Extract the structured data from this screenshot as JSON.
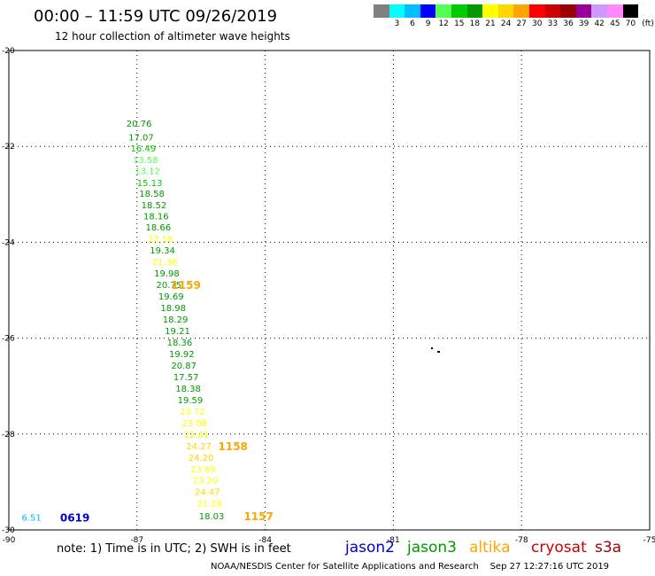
{
  "header": {
    "title": "00:00 – 11:59 UTC 09/26/2019",
    "subtitle": "12 hour collection of altimeter wave heights"
  },
  "legend": {
    "unit": "(ft)",
    "items": [
      {
        "label": "",
        "color": "#808080"
      },
      {
        "label": "3",
        "color": "#00ffff"
      },
      {
        "label": "6",
        "color": "#00bfff"
      },
      {
        "label": "9",
        "color": "#0000ff"
      },
      {
        "label": "12",
        "color": "#55ff55"
      },
      {
        "label": "15",
        "color": "#00cc00"
      },
      {
        "label": "18",
        "color": "#009900"
      },
      {
        "label": "21",
        "color": "#ffff00"
      },
      {
        "label": "24",
        "color": "#ffd700"
      },
      {
        "label": "27",
        "color": "#ffa500"
      },
      {
        "label": "30",
        "color": "#ff0000"
      },
      {
        "label": "33",
        "color": "#cc0000"
      },
      {
        "label": "36",
        "color": "#990000"
      },
      {
        "label": "39",
        "color": "#990099"
      },
      {
        "label": "42",
        "color": "#cc99ff"
      },
      {
        "label": "45",
        "color": "#ff88ff"
      },
      {
        "label": "70",
        "color": "#000000"
      }
    ]
  },
  "map": {
    "lon_range": [
      -90,
      -75
    ],
    "lat_range": [
      -30,
      -20
    ],
    "lon_ticks": [
      -90,
      -87,
      -84,
      -81,
      -78,
      -75
    ],
    "lat_ticks": [
      -20,
      -22,
      -24,
      -26,
      -28,
      -30
    ],
    "lon_tick_labels": [
      "-90",
      "-87",
      "-84",
      "-81",
      "-78",
      "-75"
    ],
    "lat_tick_labels": [
      "-20",
      "-22",
      "-24",
      "-26",
      "-28",
      "-30"
    ]
  },
  "track_readings": [
    {
      "lon": -87.25,
      "lat": -21.52,
      "text": "20.76",
      "color": "#009900"
    },
    {
      "lon": -87.2,
      "lat": -21.8,
      "text": "17.07",
      "color": "#009900"
    },
    {
      "lon": -87.15,
      "lat": -22.03,
      "text": "16.49",
      "color": "#00cc00"
    },
    {
      "lon": -87.1,
      "lat": -22.27,
      "text": "13.58",
      "color": "#55ff55"
    },
    {
      "lon": -87.05,
      "lat": -22.5,
      "text": "13.12",
      "color": "#55ff55"
    },
    {
      "lon": -87.0,
      "lat": -22.75,
      "text": "15.13",
      "color": "#00cc00"
    },
    {
      "lon": -86.95,
      "lat": -22.98,
      "text": "18.58",
      "color": "#009900"
    },
    {
      "lon": -86.9,
      "lat": -23.22,
      "text": "18.52",
      "color": "#009900"
    },
    {
      "lon": -86.85,
      "lat": -23.45,
      "text": "18.16",
      "color": "#009900"
    },
    {
      "lon": -86.8,
      "lat": -23.68,
      "text": "18.66",
      "color": "#009900"
    },
    {
      "lon": -86.75,
      "lat": -23.92,
      "text": "22.18",
      "color": "#ffff00"
    },
    {
      "lon": -86.7,
      "lat": -24.16,
      "text": "19.34",
      "color": "#009900"
    },
    {
      "lon": -86.65,
      "lat": -24.4,
      "text": "21.36",
      "color": "#ffff00"
    },
    {
      "lon": -86.6,
      "lat": -24.64,
      "text": "19.98",
      "color": "#009900"
    },
    {
      "lon": -86.55,
      "lat": -24.88,
      "text": "20.75",
      "color": "#009900"
    },
    {
      "lon": -86.5,
      "lat": -25.12,
      "text": "19.69",
      "color": "#009900"
    },
    {
      "lon": -86.45,
      "lat": -25.36,
      "text": "18.98",
      "color": "#009900"
    },
    {
      "lon": -86.4,
      "lat": -25.6,
      "text": "18.29",
      "color": "#009900"
    },
    {
      "lon": -86.35,
      "lat": -25.84,
      "text": "19.21",
      "color": "#009900"
    },
    {
      "lon": -86.3,
      "lat": -26.08,
      "text": "18.36",
      "color": "#009900"
    },
    {
      "lon": -86.25,
      "lat": -26.32,
      "text": "19.92",
      "color": "#009900"
    },
    {
      "lon": -86.2,
      "lat": -26.56,
      "text": "20.87",
      "color": "#009900"
    },
    {
      "lon": -86.15,
      "lat": -26.8,
      "text": "17.57",
      "color": "#009900"
    },
    {
      "lon": -86.1,
      "lat": -27.04,
      "text": "18.38",
      "color": "#009900"
    },
    {
      "lon": -86.05,
      "lat": -27.28,
      "text": "19.59",
      "color": "#009900"
    },
    {
      "lon": -86.0,
      "lat": -27.52,
      "text": "23.72",
      "color": "#ffff00"
    },
    {
      "lon": -85.95,
      "lat": -27.76,
      "text": "23.08",
      "color": "#ffff00"
    },
    {
      "lon": -85.9,
      "lat": -28.0,
      "text": "22.61",
      "color": "#ffff00"
    },
    {
      "lon": -85.85,
      "lat": -28.24,
      "text": "24.27",
      "color": "#ffd700"
    },
    {
      "lon": -85.8,
      "lat": -28.48,
      "text": "24.20",
      "color": "#ffd700"
    },
    {
      "lon": -85.75,
      "lat": -28.72,
      "text": "23.69",
      "color": "#ffff00"
    },
    {
      "lon": -85.7,
      "lat": -28.96,
      "text": "23.20",
      "color": "#ffff00"
    },
    {
      "lon": -85.65,
      "lat": -29.2,
      "text": "24.47",
      "color": "#ffd700"
    },
    {
      "lon": -85.6,
      "lat": -29.44,
      "text": "21.28",
      "color": "#ffff00"
    },
    {
      "lon": -85.55,
      "lat": -29.7,
      "text": "18.03",
      "color": "#009900"
    },
    {
      "lon": -89.7,
      "lat": -29.73,
      "text": "6.51",
      "color": "#00bfff"
    }
  ],
  "pass_times": [
    {
      "lon": -86.2,
      "lat": -24.88,
      "text": "1159",
      "color": "#ffa500"
    },
    {
      "lon": -85.1,
      "lat": -28.24,
      "text": "1158",
      "color": "#ffa500"
    },
    {
      "lon": -84.5,
      "lat": -29.7,
      "text": "1157",
      "color": "#ffa500"
    },
    {
      "lon": -88.8,
      "lat": -29.73,
      "text": "0619",
      "color": "#0000cc"
    }
  ],
  "footer": {
    "note": "note: 1) Time is in UTC; 2) SWH is in feet",
    "satellites": [
      {
        "name": "jason2",
        "color": "#0000cc"
      },
      {
        "name": "jason3",
        "color": "#009900"
      },
      {
        "name": "altika",
        "color": "#ffa500"
      },
      {
        "name": "cryosat",
        "color": "#cc0000"
      },
      {
        "name": "s3a",
        "color": "#990000"
      }
    ],
    "credit": "NOAA/NESDIS Center for Satellite Applications and Research    Sep 27 12:27:16 UTC 2019"
  }
}
